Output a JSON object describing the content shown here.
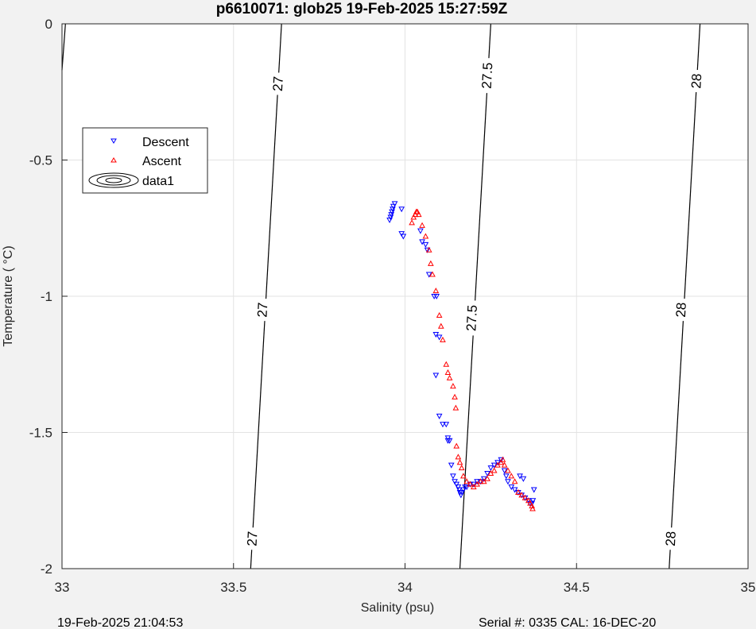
{
  "chart_data": {
    "type": "scatter",
    "title": "p6610071: glob25 19-Feb-2025 15:27:59Z",
    "xlabel": "Salinity (psu)",
    "ylabel": "Temperature (   °C)",
    "xlim": [
      33,
      35
    ],
    "ylim": [
      -2,
      0
    ],
    "xticks": [
      33,
      33.5,
      34,
      34.5,
      35
    ],
    "yticks": [
      0,
      -0.5,
      -1,
      -1.5,
      -2
    ],
    "xtick_labels": [
      "33",
      "33.5",
      "34",
      "34.5",
      "35"
    ],
    "ytick_labels": [
      "0",
      "-0.5",
      "-1",
      "-1.5",
      "-2"
    ],
    "grid": true,
    "legend_position": "upper-left",
    "legend": [
      "Descent",
      "Ascent",
      "data1"
    ],
    "contours": [
      {
        "label": "27",
        "points": [
          [
            33.01,
            0
          ],
          [
            33,
            -0.17
          ]
        ]
      },
      {
        "label": "27",
        "points": [
          [
            33.64,
            0
          ],
          [
            33.55,
            -2
          ]
        ]
      },
      {
        "label": "27.5",
        "points": [
          [
            34.25,
            0
          ],
          [
            34.16,
            -2
          ]
        ]
      },
      {
        "label": "28",
        "points": [
          [
            34.86,
            0
          ],
          [
            34.77,
            -2
          ]
        ]
      }
    ],
    "contour_label_positions": [
      {
        "text": "27",
        "x": 33.63,
        "y": -0.22
      },
      {
        "text": "27",
        "x": 33.585,
        "y": -1.05
      },
      {
        "text": "27",
        "x": 33.555,
        "y": -1.89
      },
      {
        "text": "27.5",
        "x": 34.24,
        "y": -0.19
      },
      {
        "text": "27.5",
        "x": 34.195,
        "y": -1.08
      },
      {
        "text": "28",
        "x": 34.85,
        "y": -0.21
      },
      {
        "text": "28",
        "x": 34.805,
        "y": -1.05
      },
      {
        "text": "28",
        "x": 34.775,
        "y": -1.89
      }
    ],
    "series": [
      {
        "name": "Descent",
        "color": "#0000ff",
        "marker": "triangle-down",
        "x": [
          33.955,
          33.958,
          33.96,
          33.962,
          33.964,
          33.966,
          33.97,
          33.99,
          33.99,
          33.995,
          34.045,
          34.05,
          34.06,
          34.065,
          34.07,
          34.085,
          34.092,
          34.09,
          34.1,
          34.09,
          34.1,
          34.11,
          34.12,
          34.125,
          34.125,
          34.13,
          34.135,
          34.14,
          34.145,
          34.15,
          34.155,
          34.158,
          34.16,
          34.163,
          34.166,
          34.17,
          34.175,
          34.18,
          34.19,
          34.2,
          34.21,
          34.22,
          34.23,
          34.24,
          34.25,
          34.26,
          34.27,
          34.28,
          34.29,
          34.295,
          34.3,
          34.31,
          34.32,
          34.33,
          34.34,
          34.35,
          34.36,
          34.365,
          34.37,
          34.373,
          34.376,
          34.335,
          34.345
        ],
        "y": [
          -0.72,
          -0.71,
          -0.7,
          -0.69,
          -0.68,
          -0.67,
          -0.66,
          -0.68,
          -0.77,
          -0.78,
          -0.76,
          -0.8,
          -0.81,
          -0.83,
          -0.92,
          -1.0,
          -1.0,
          -1.14,
          -1.15,
          -1.29,
          -1.44,
          -1.47,
          -1.47,
          -1.52,
          -1.53,
          -1.53,
          -1.62,
          -1.66,
          -1.68,
          -1.69,
          -1.7,
          -1.71,
          -1.72,
          -1.73,
          -1.72,
          -1.71,
          -1.7,
          -1.7,
          -1.69,
          -1.69,
          -1.68,
          -1.68,
          -1.67,
          -1.65,
          -1.63,
          -1.62,
          -1.61,
          -1.6,
          -1.64,
          -1.66,
          -1.68,
          -1.7,
          -1.71,
          -1.72,
          -1.73,
          -1.74,
          -1.75,
          -1.76,
          -1.76,
          -1.75,
          -1.71,
          -1.66,
          -1.67
        ]
      },
      {
        "name": "Ascent",
        "color": "#ff0000",
        "marker": "triangle-up",
        "x": [
          34.02,
          34.025,
          34.03,
          34.033,
          34.036,
          34.04,
          34.05,
          34.06,
          34.07,
          34.075,
          34.08,
          34.09,
          34.1,
          34.105,
          34.11,
          34.12,
          34.125,
          34.13,
          34.14,
          34.145,
          34.148,
          34.15,
          34.155,
          34.16,
          34.165,
          34.17,
          34.18,
          34.19,
          34.2,
          34.21,
          34.22,
          34.23,
          34.24,
          34.25,
          34.26,
          34.27,
          34.28,
          34.285,
          34.29,
          34.3,
          34.31,
          34.32,
          34.33,
          34.34,
          34.35,
          34.36,
          34.365,
          34.37,
          34.372
        ],
        "y": [
          -0.73,
          -0.71,
          -0.7,
          -0.69,
          -0.69,
          -0.7,
          -0.74,
          -0.78,
          -0.83,
          -0.88,
          -0.92,
          -0.98,
          -1.07,
          -1.11,
          -1.16,
          -1.25,
          -1.28,
          -1.3,
          -1.33,
          -1.37,
          -1.41,
          -1.55,
          -1.59,
          -1.61,
          -1.63,
          -1.66,
          -1.68,
          -1.69,
          -1.7,
          -1.69,
          -1.68,
          -1.68,
          -1.67,
          -1.65,
          -1.64,
          -1.62,
          -1.61,
          -1.6,
          -1.62,
          -1.64,
          -1.66,
          -1.68,
          -1.72,
          -1.73,
          -1.74,
          -1.75,
          -1.76,
          -1.77,
          -1.78
        ]
      }
    ]
  },
  "footer": {
    "left": "19-Feb-2025 21:04:53",
    "right": "Serial #: 0335  CAL: 16-DEC-20"
  }
}
